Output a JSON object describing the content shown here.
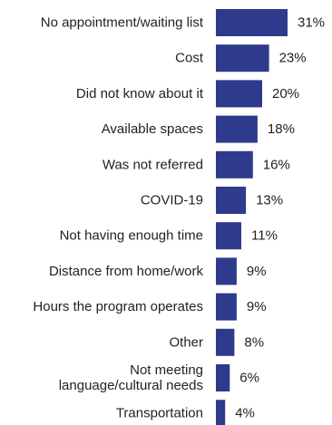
{
  "chart_data": {
    "type": "bar",
    "orientation": "horizontal",
    "categories": [
      [
        "No appointment/waiting list"
      ],
      [
        "Cost"
      ],
      [
        "Did not know about it"
      ],
      [
        "Available spaces"
      ],
      [
        "Was not referred"
      ],
      [
        "COVID-19"
      ],
      [
        "Not having enough time"
      ],
      [
        "Distance from home/work"
      ],
      [
        "Hours the program operates"
      ],
      [
        "Other"
      ],
      [
        "Not meeting",
        "language/cultural needs"
      ],
      [
        "Transportation"
      ]
    ],
    "values": [
      31,
      23,
      20,
      18,
      16,
      13,
      11,
      9,
      9,
      8,
      6,
      4
    ],
    "value_labels": [
      "31%",
      "23%",
      "20%",
      "18%",
      "16%",
      "13%",
      "11%",
      "9%",
      "9%",
      "8%",
      "6%",
      "4%"
    ],
    "unit": "%",
    "bar_color": "#2e3a8c",
    "xlim": [
      0,
      31
    ]
  }
}
